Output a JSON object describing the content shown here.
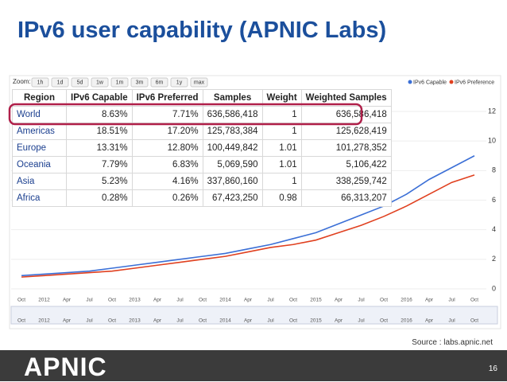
{
  "title": "IPv6 user capability (APNIC Labs)",
  "chart_data": {
    "type": "line",
    "zoom_label": "Zoom:",
    "zoom_buttons": [
      "1h",
      "1d",
      "5d",
      "1w",
      "1m",
      "3m",
      "6m",
      "1y",
      "max"
    ],
    "categories": [
      "Oct",
      "2012",
      "Apr",
      "Jul",
      "Oct",
      "2013",
      "Apr",
      "Jul",
      "Oct",
      "2014",
      "Apr",
      "Jul",
      "Oct",
      "2015",
      "Apr",
      "Jul",
      "Oct",
      "2016",
      "Apr",
      "Jul",
      "Oct"
    ],
    "series": [
      {
        "name": "IPv6 Capable",
        "color": "#3b6fd6",
        "values": [
          0.9,
          1.0,
          1.1,
          1.2,
          1.4,
          1.6,
          1.8,
          2.0,
          2.2,
          2.4,
          2.7,
          3.0,
          3.4,
          3.8,
          4.4,
          5.0,
          5.6,
          6.4,
          7.4,
          8.2,
          9.0
        ]
      },
      {
        "name": "IPv6 Preference",
        "color": "#e0401f",
        "values": [
          0.8,
          0.9,
          1.0,
          1.1,
          1.2,
          1.4,
          1.6,
          1.8,
          2.0,
          2.2,
          2.5,
          2.8,
          3.0,
          3.3,
          3.8,
          4.3,
          4.9,
          5.6,
          6.4,
          7.2,
          7.7
        ]
      }
    ],
    "ylim": [
      0,
      12
    ],
    "yticks": [
      0,
      2,
      4,
      6,
      8,
      10,
      12
    ],
    "navigator_categories": [
      "Oct",
      "2012",
      "Apr",
      "Jul",
      "Oct",
      "2013",
      "Apr",
      "Jul",
      "Oct",
      "2014",
      "Apr",
      "Jul",
      "Oct",
      "2015",
      "Apr",
      "Jul",
      "Oct",
      "2016",
      "Apr",
      "Jul",
      "Oct"
    ]
  },
  "table": {
    "header": [
      "Region",
      "IPv6 Capable",
      "IPv6 Preferred",
      "Samples",
      "Weight",
      "Weighted Samples"
    ],
    "rows": [
      [
        "World",
        "8.63%",
        "7.71%",
        "636,586,418",
        "1",
        "636,586,418"
      ],
      [
        "Americas",
        "18.51%",
        "17.20%",
        "125,783,384",
        "1",
        "125,628,419"
      ],
      [
        "Europe",
        "13.31%",
        "12.80%",
        "100,449,842",
        "1.01",
        "101,278,352"
      ],
      [
        "Oceania",
        "7.79%",
        "6.83%",
        "5,069,590",
        "1.01",
        "5,106,422"
      ],
      [
        "Asia",
        "5.23%",
        "4.16%",
        "337,860,160",
        "1",
        "338,259,742"
      ],
      [
        "Africa",
        "0.28%",
        "0.26%",
        "67,423,250",
        "0.98",
        "66,313,207"
      ]
    ]
  },
  "source": "Source : labs.apnic.net",
  "logo": "APNIC",
  "page_number": "16"
}
